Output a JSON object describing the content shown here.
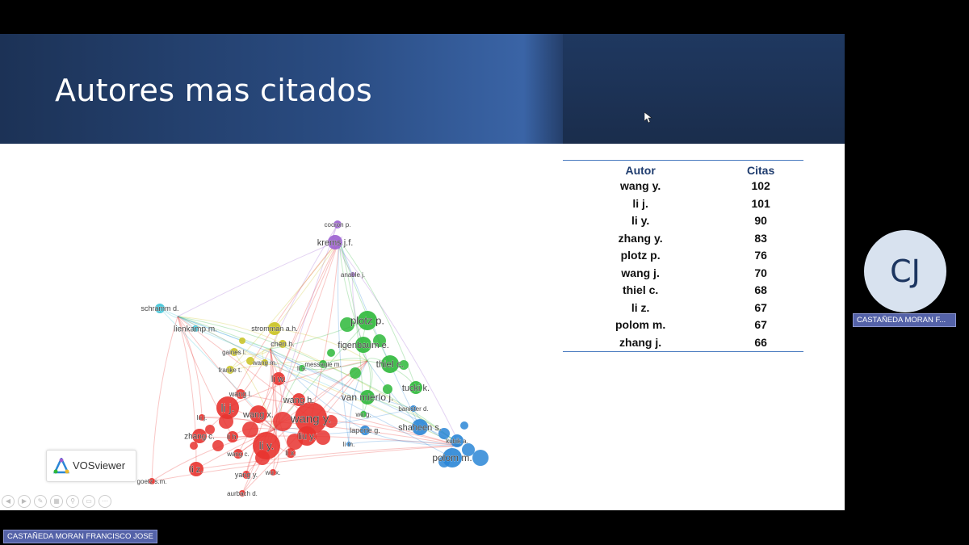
{
  "slide": {
    "title": "Autores mas citados"
  },
  "network": {
    "tool_label": "VOSviewer",
    "labels": [
      {
        "text": "cocron p.",
        "color": "#444"
      },
      {
        "text": "krems j.f.",
        "color": "#444"
      },
      {
        "text": "anable j.",
        "color": "#444"
      },
      {
        "text": "schramm d.",
        "color": "#444"
      },
      {
        "text": "lienkamp m.",
        "color": "#444"
      },
      {
        "text": "stromman a.h.",
        "color": "#444"
      },
      {
        "text": "plotz p.",
        "color": "#444"
      },
      {
        "text": "chen h.",
        "color": "#444"
      },
      {
        "text": "figenbaum e.",
        "color": "#444"
      },
      {
        "text": "gaines l.",
        "color": "#444"
      },
      {
        "text": "wang m.",
        "color": "#444"
      },
      {
        "text": "franke t.",
        "color": "#444"
      },
      {
        "text": "li s.",
        "color": "#444"
      },
      {
        "text": "messagie m.",
        "color": "#444"
      },
      {
        "text": "thiel c.",
        "color": "#444"
      },
      {
        "text": "li w.",
        "color": "#444"
      },
      {
        "text": "wang l.",
        "color": "#444"
      },
      {
        "text": "tucki k.",
        "color": "#444"
      },
      {
        "text": "wang h.",
        "color": "#444"
      },
      {
        "text": "van mierlo j.",
        "color": "#444"
      },
      {
        "text": "li j.",
        "color": "#444"
      },
      {
        "text": "wang x.",
        "color": "#444"
      },
      {
        "text": "wang y.",
        "color": "#444"
      },
      {
        "text": "wu g.",
        "color": "#444"
      },
      {
        "text": "banister d.",
        "color": "#444"
      },
      {
        "text": "lu j.",
        "color": "#444"
      },
      {
        "text": "shaheen s.",
        "color": "#444"
      },
      {
        "text": "zhang c.",
        "color": "#444"
      },
      {
        "text": "li h.",
        "color": "#444"
      },
      {
        "text": "liu y.",
        "color": "#444"
      },
      {
        "text": "laporte g.",
        "color": "#444"
      },
      {
        "text": "kubik a.",
        "color": "#444"
      },
      {
        "text": "li m.",
        "color": "#444"
      },
      {
        "text": "li y.",
        "color": "#444"
      },
      {
        "text": "polom m.",
        "color": "#444"
      },
      {
        "text": "wang c.",
        "color": "#444"
      },
      {
        "text": "li x.",
        "color": "#444"
      },
      {
        "text": "li z.",
        "color": "#444"
      },
      {
        "text": "yang y.",
        "color": "#444"
      },
      {
        "text": "wu x.",
        "color": "#444"
      },
      {
        "text": "goetz s.m.",
        "color": "#444"
      },
      {
        "text": "aurbach d.",
        "color": "#444"
      }
    ],
    "cluster_colors": {
      "red": "#e8332f",
      "green": "#2db83a",
      "blue": "#2a86d6",
      "yellow": "#c9c21e",
      "purple": "#9b5fd0",
      "cyan": "#3ec4d8"
    }
  },
  "table": {
    "headers": [
      "Autor",
      "Citas"
    ],
    "rows": [
      [
        "wang y.",
        "102"
      ],
      [
        "li j.",
        "101"
      ],
      [
        "li y.",
        "90"
      ],
      [
        "zhang y.",
        "83"
      ],
      [
        "plotz p.",
        "76"
      ],
      [
        "wang j.",
        "70"
      ],
      [
        "thiel c.",
        "68"
      ],
      [
        "li z.",
        "67"
      ],
      [
        "polom m.",
        "67"
      ],
      [
        "zhang j.",
        "66"
      ]
    ]
  },
  "participant": {
    "initials": "CJ",
    "short_name": "CASTAÑEDA MORAN F...",
    "full_name": "CASTAÑEDA MORAN FRANCISCO JOSE"
  }
}
